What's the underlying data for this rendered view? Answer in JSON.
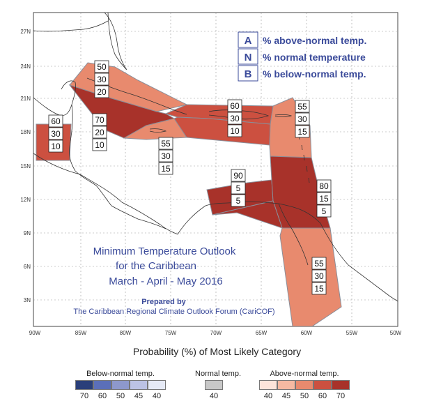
{
  "map": {
    "lat_labels": [
      "27N",
      "24N",
      "21N",
      "18N",
      "15N",
      "12N",
      "9N",
      "6N",
      "3N"
    ],
    "lon_labels": [
      "90W",
      "85W",
      "80W",
      "75W",
      "70W",
      "65W",
      "60W",
      "55W",
      "50W"
    ],
    "key": [
      {
        "letter": "A",
        "text": "% above-normal temp."
      },
      {
        "letter": "N",
        "text": "% normal temperature"
      },
      {
        "letter": "B",
        "text": "% below-normal temp."
      }
    ],
    "title_lines": [
      "Minimum Temperature Outlook",
      "for the Caribbean",
      "March - April - May 2016"
    ],
    "prepared_lines": [
      "Prepared by",
      "The Caribbean Regional Climate Outlook Forum (CariCOF)"
    ],
    "regions": [
      {
        "name": "bahamas",
        "probs": [
          "50",
          "30",
          "20"
        ],
        "color": "#e88a6e"
      },
      {
        "name": "cuba-west",
        "probs": [
          "70",
          "20",
          "10"
        ],
        "color": "#a8322a"
      },
      {
        "name": "hispaniola",
        "probs": [
          "60",
          "30",
          "10"
        ],
        "color": "#cc5040"
      },
      {
        "name": "jamaica-cayman",
        "probs": [
          "55",
          "30",
          "15"
        ],
        "color": "#e88a6e"
      },
      {
        "name": "northern-antilles",
        "probs": [
          "55",
          "30",
          "15"
        ],
        "color": "#e88a6e"
      },
      {
        "name": "yucatan",
        "probs": [
          "60",
          "30",
          "10"
        ],
        "color": "#cc5040"
      },
      {
        "name": "southern-caribbean",
        "probs": [
          "90",
          "5",
          "5"
        ],
        "color": "#a8322a"
      },
      {
        "name": "lesser-antilles-south",
        "probs": [
          "80",
          "15",
          "5"
        ],
        "color": "#a8322a"
      },
      {
        "name": "guianas",
        "probs": [
          "55",
          "30",
          "15"
        ],
        "color": "#e88a6e"
      }
    ]
  },
  "legend": {
    "title": "Probability (%) of Most Likely Category",
    "groups": [
      {
        "title": "Below-normal temp.",
        "colors": [
          "#2a3f7a",
          "#5b6fb9",
          "#8d98cc",
          "#bcc2e4",
          "#e6eaf6"
        ],
        "ticks": [
          "70",
          "60",
          "50",
          "45",
          "40"
        ]
      },
      {
        "title": "Normal temp.",
        "colors": [
          "#c8c8c8"
        ],
        "ticks": [
          "40"
        ]
      },
      {
        "title": "Above-normal temp.",
        "colors": [
          "#fce4da",
          "#f5b9a2",
          "#e88a6e",
          "#cc5040",
          "#a8322a"
        ],
        "ticks": [
          "40",
          "45",
          "50",
          "60",
          "70"
        ]
      }
    ]
  }
}
